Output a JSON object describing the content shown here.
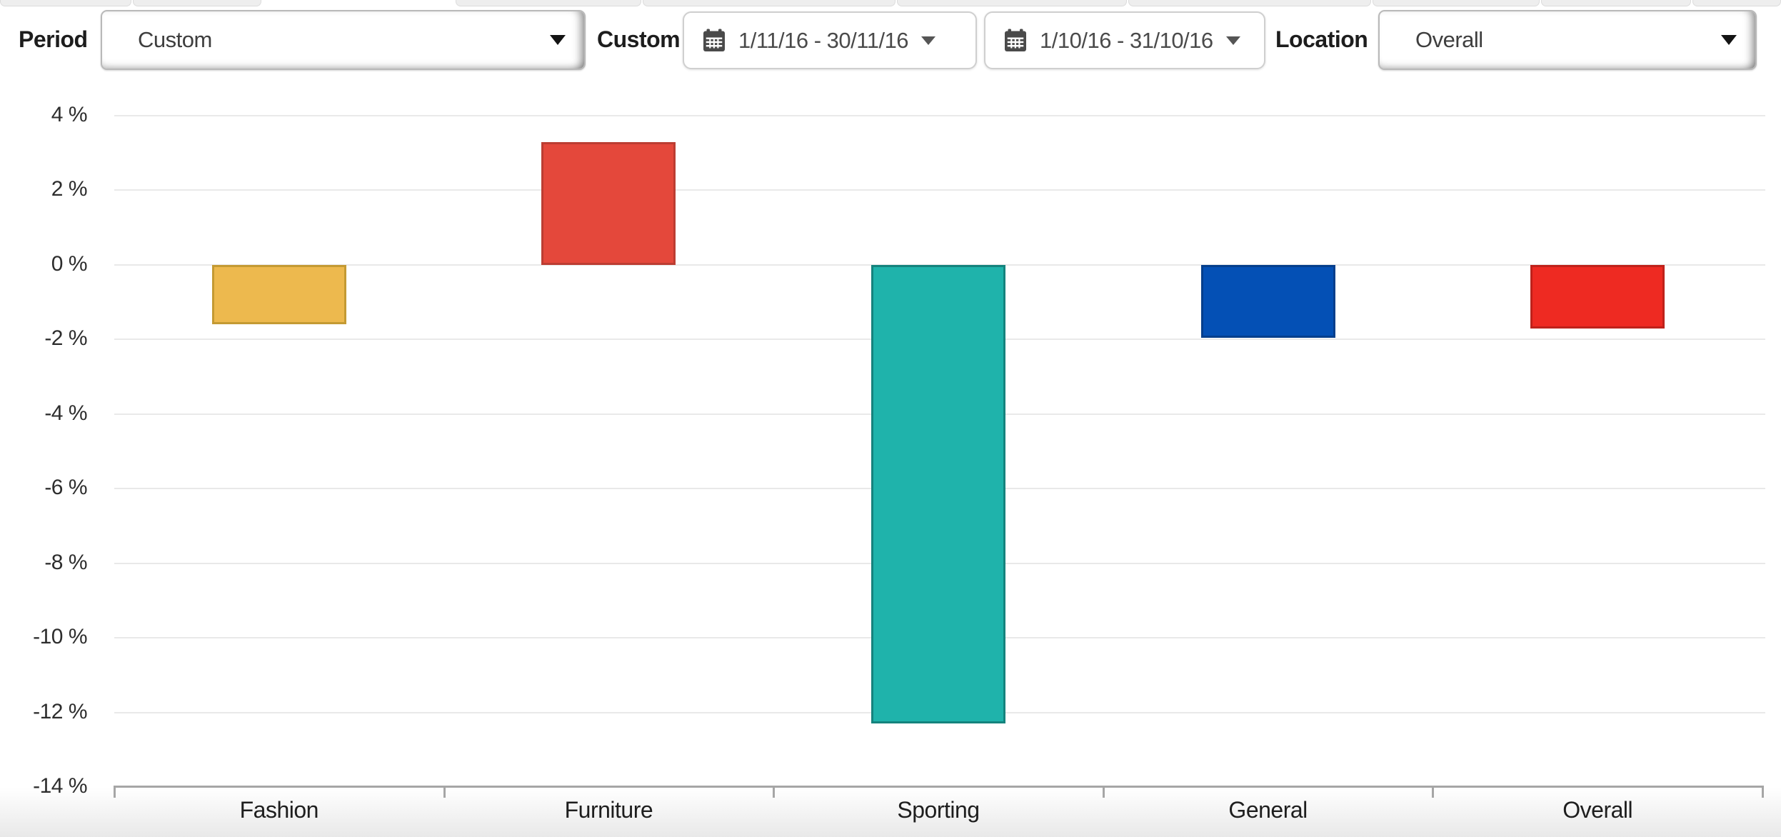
{
  "filters": {
    "period_label": "Period",
    "period_value": "Custom",
    "custom_label": "Custom",
    "date_range_1": "1/11/16 - 30/11/16",
    "date_range_2": "1/10/16 - 31/10/16",
    "location_label": "Location",
    "location_value": "Overall"
  },
  "icons": {
    "calendar": "calendar-icon",
    "dropdown_caret": "chevron-down-icon"
  },
  "chart_data": {
    "type": "bar",
    "title": "",
    "categories": [
      "Fashion",
      "Furniture",
      "Sporting",
      "General",
      "Overall"
    ],
    "values": [
      -1.6,
      3.3,
      -12.3,
      -1.95,
      -1.7
    ],
    "bar_colors": [
      "#edb94e",
      "#e4483b",
      "#1fb3ab",
      "#0450b5",
      "#ee2a22"
    ],
    "bar_border_colors": [
      "#c49a33",
      "#bc3d32",
      "#15837d",
      "#063f8c",
      "#bf221b"
    ],
    "xlabel": "",
    "ylabel": "",
    "ylim": [
      -14,
      4
    ],
    "yticks": [
      4,
      2,
      0,
      -2,
      -4,
      -6,
      -8,
      -10,
      -12,
      -14
    ],
    "ytick_labels": [
      "4 %",
      "2 %",
      "0 %",
      "-2 %",
      "-4 %",
      "-6 %",
      "-8 %",
      "-10 %",
      "-12 %",
      "-14 %"
    ],
    "grid": true,
    "legend": false
  }
}
